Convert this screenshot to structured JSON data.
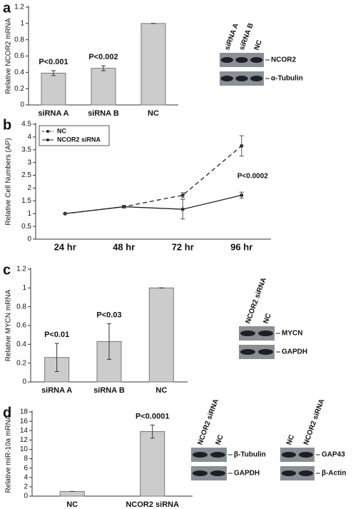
{
  "chart_data": [
    {
      "type": "bar",
      "panel": "a",
      "y_label": "Relative NCOR2 mRNA",
      "categories": [
        "siRNA A",
        "siRNA B",
        "NC"
      ],
      "values": [
        0.39,
        0.45,
        1.0
      ],
      "errors": [
        0.03,
        0.03,
        0
      ],
      "value_annotations": [
        "P<0.001",
        "P<0.002",
        null
      ],
      "color": "#cccccc",
      "ylim": [
        0,
        1.2
      ],
      "yticks": [
        0,
        0.2,
        0.4,
        0.6,
        0.8,
        1,
        1.2
      ],
      "blots": [
        {
          "lanes": [
            "siRNA A",
            "siRNA B",
            "NC"
          ],
          "bands": [
            "NCOR2",
            "α-Tubulin"
          ]
        }
      ]
    },
    {
      "type": "line",
      "panel": "b",
      "y_label": "Relative Cell Numbers (AP)",
      "categories": [
        "24 hr",
        "48 hr",
        "72 hr",
        "96 hr"
      ],
      "series": [
        {
          "name": "NC",
          "color": "#222222",
          "line_style": "dashed",
          "values": [
            1,
            1.27,
            1.72,
            3.65
          ],
          "errors": [
            0,
            0.05,
            0.1,
            0.4
          ]
        },
        {
          "name": "NCOR2 siRNA",
          "color": "#222222",
          "line_style": "solid",
          "values": [
            1,
            1.27,
            1.17,
            1.72
          ],
          "errors": [
            0,
            0.05,
            0.38,
            0.12
          ]
        }
      ],
      "annotation": "P<0.0002",
      "legend": "upper left",
      "ylim": [
        0,
        4.5
      ],
      "yticks": [
        0,
        0.5,
        1,
        1.5,
        2,
        2.5,
        3,
        3.5,
        4,
        4.5
      ]
    },
    {
      "type": "bar",
      "panel": "c",
      "y_label": "Relative MYCN mRNA",
      "categories": [
        "siRNA A",
        "siRNA B",
        "NC"
      ],
      "values": [
        0.26,
        0.43,
        1.0
      ],
      "errors": [
        0.15,
        0.19,
        0
      ],
      "value_annotations": [
        "P<0.01",
        "P<0.03",
        null
      ],
      "color": "#cccccc",
      "ylim": [
        0,
        1.2
      ],
      "yticks": [
        0,
        0.2,
        0.4,
        0.6,
        0.8,
        1,
        1.2
      ],
      "blots": [
        {
          "lanes": [
            "NCOR2 siRNA",
            "NC"
          ],
          "bands": [
            "MYCN",
            "GAPDH"
          ]
        }
      ]
    },
    {
      "type": "bar",
      "panel": "d",
      "y_label": "Relative miR-10a mRNA",
      "categories": [
        "NC",
        "NCOR2 siRNA"
      ],
      "values": [
        1.0,
        13.8
      ],
      "errors": [
        0,
        1.4
      ],
      "value_annotations": [
        null,
        "P<0.0001"
      ],
      "color": "#cccccc",
      "ylim": [
        0,
        18
      ],
      "yticks": [
        0,
        2,
        4,
        6,
        8,
        10,
        12,
        14,
        16,
        18
      ],
      "blots": [
        {
          "lanes": [
            "NCOR2 siRNA",
            "NC"
          ],
          "bands": [
            "β-Tubulin",
            "GAPDH"
          ]
        },
        {
          "lanes": [
            "NC",
            "NCOR2 siRNA"
          ],
          "bands": [
            "GAP43",
            "β-Actin"
          ]
        }
      ]
    }
  ]
}
